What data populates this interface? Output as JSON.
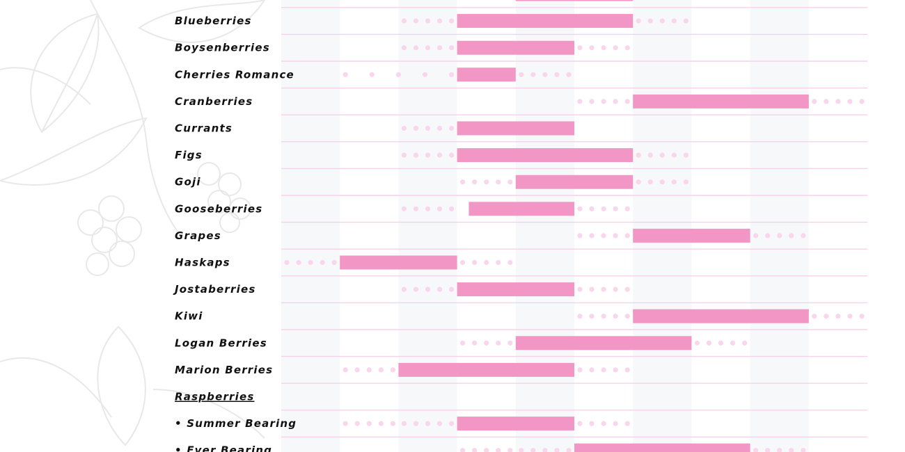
{
  "chart_data": {
    "type": "bar",
    "title": "",
    "xlabel": "",
    "ylabel": "",
    "legend": "none",
    "grid": true,
    "x_range": [
      0,
      10
    ],
    "colors": {
      "harvest_bar": "#f196c5",
      "extended_dots": "#f8d6ec",
      "row_divider": "#f6d2ea",
      "column_band": "#f7f8fa",
      "label_text": "#111111",
      "background_art": "#e8e8e8"
    },
    "rows": [
      {
        "label": "",
        "bar": [
          4,
          6
        ]
      },
      {
        "label": "Blueberries",
        "bar": [
          3,
          6
        ],
        "extended": [
          [
            2,
            3
          ],
          [
            6,
            7
          ]
        ]
      },
      {
        "label": "Boysenberries",
        "bar": [
          3,
          5
        ],
        "extended": [
          [
            2,
            3
          ],
          [
            5,
            6
          ]
        ]
      },
      {
        "label": "Cherries Romance",
        "bar": [
          3,
          4
        ],
        "extended": [
          [
            1,
            3
          ],
          [
            4,
            5
          ]
        ]
      },
      {
        "label": "Cranberries",
        "bar": [
          6,
          9
        ],
        "extended": [
          [
            5,
            6
          ],
          [
            9,
            10
          ]
        ]
      },
      {
        "label": "Currants",
        "bar": [
          3,
          5
        ],
        "extended": [
          [
            2,
            3
          ]
        ]
      },
      {
        "label": "Figs",
        "bar": [
          3,
          6
        ],
        "extended": [
          [
            2,
            3
          ],
          [
            6,
            7
          ]
        ]
      },
      {
        "label": "Goji",
        "bar": [
          4,
          6
        ],
        "extended": [
          [
            3,
            4
          ],
          [
            6,
            7
          ]
        ]
      },
      {
        "label": "Gooseberries",
        "bar": [
          3.2,
          5
        ],
        "extended": [
          [
            2,
            3
          ],
          [
            5,
            6
          ]
        ]
      },
      {
        "label": "Grapes",
        "bar": [
          6,
          8
        ],
        "extended": [
          [
            5,
            6
          ],
          [
            8,
            9
          ]
        ]
      },
      {
        "label": "Haskaps",
        "bar": [
          1,
          3
        ],
        "extended": [
          [
            0,
            1
          ],
          [
            3,
            4
          ]
        ]
      },
      {
        "label": "Jostaberries",
        "bar": [
          3,
          5
        ],
        "extended": [
          [
            2,
            3
          ],
          [
            5,
            6
          ]
        ]
      },
      {
        "label": "Kiwi",
        "bar": [
          6,
          9
        ],
        "extended": [
          [
            5,
            6
          ],
          [
            9,
            10
          ]
        ]
      },
      {
        "label": "Logan Berries",
        "bar": [
          4,
          7
        ],
        "extended": [
          [
            3,
            4
          ],
          [
            7,
            8
          ]
        ]
      },
      {
        "label": "Marion Berries",
        "bar": [
          2,
          5
        ],
        "extended": [
          [
            1,
            2
          ],
          [
            5,
            6
          ]
        ]
      },
      {
        "label": "Raspberries",
        "heading": true
      },
      {
        "label": "• Summer Bearing",
        "bar": [
          3,
          5
        ],
        "extended": [
          [
            1,
            2
          ],
          [
            2,
            3
          ],
          [
            5,
            6
          ]
        ]
      },
      {
        "label": "• Ever Bearing",
        "bar": [
          5,
          8
        ],
        "extended": [
          [
            3,
            4
          ],
          [
            4,
            5
          ],
          [
            8,
            9
          ]
        ]
      }
    ]
  }
}
